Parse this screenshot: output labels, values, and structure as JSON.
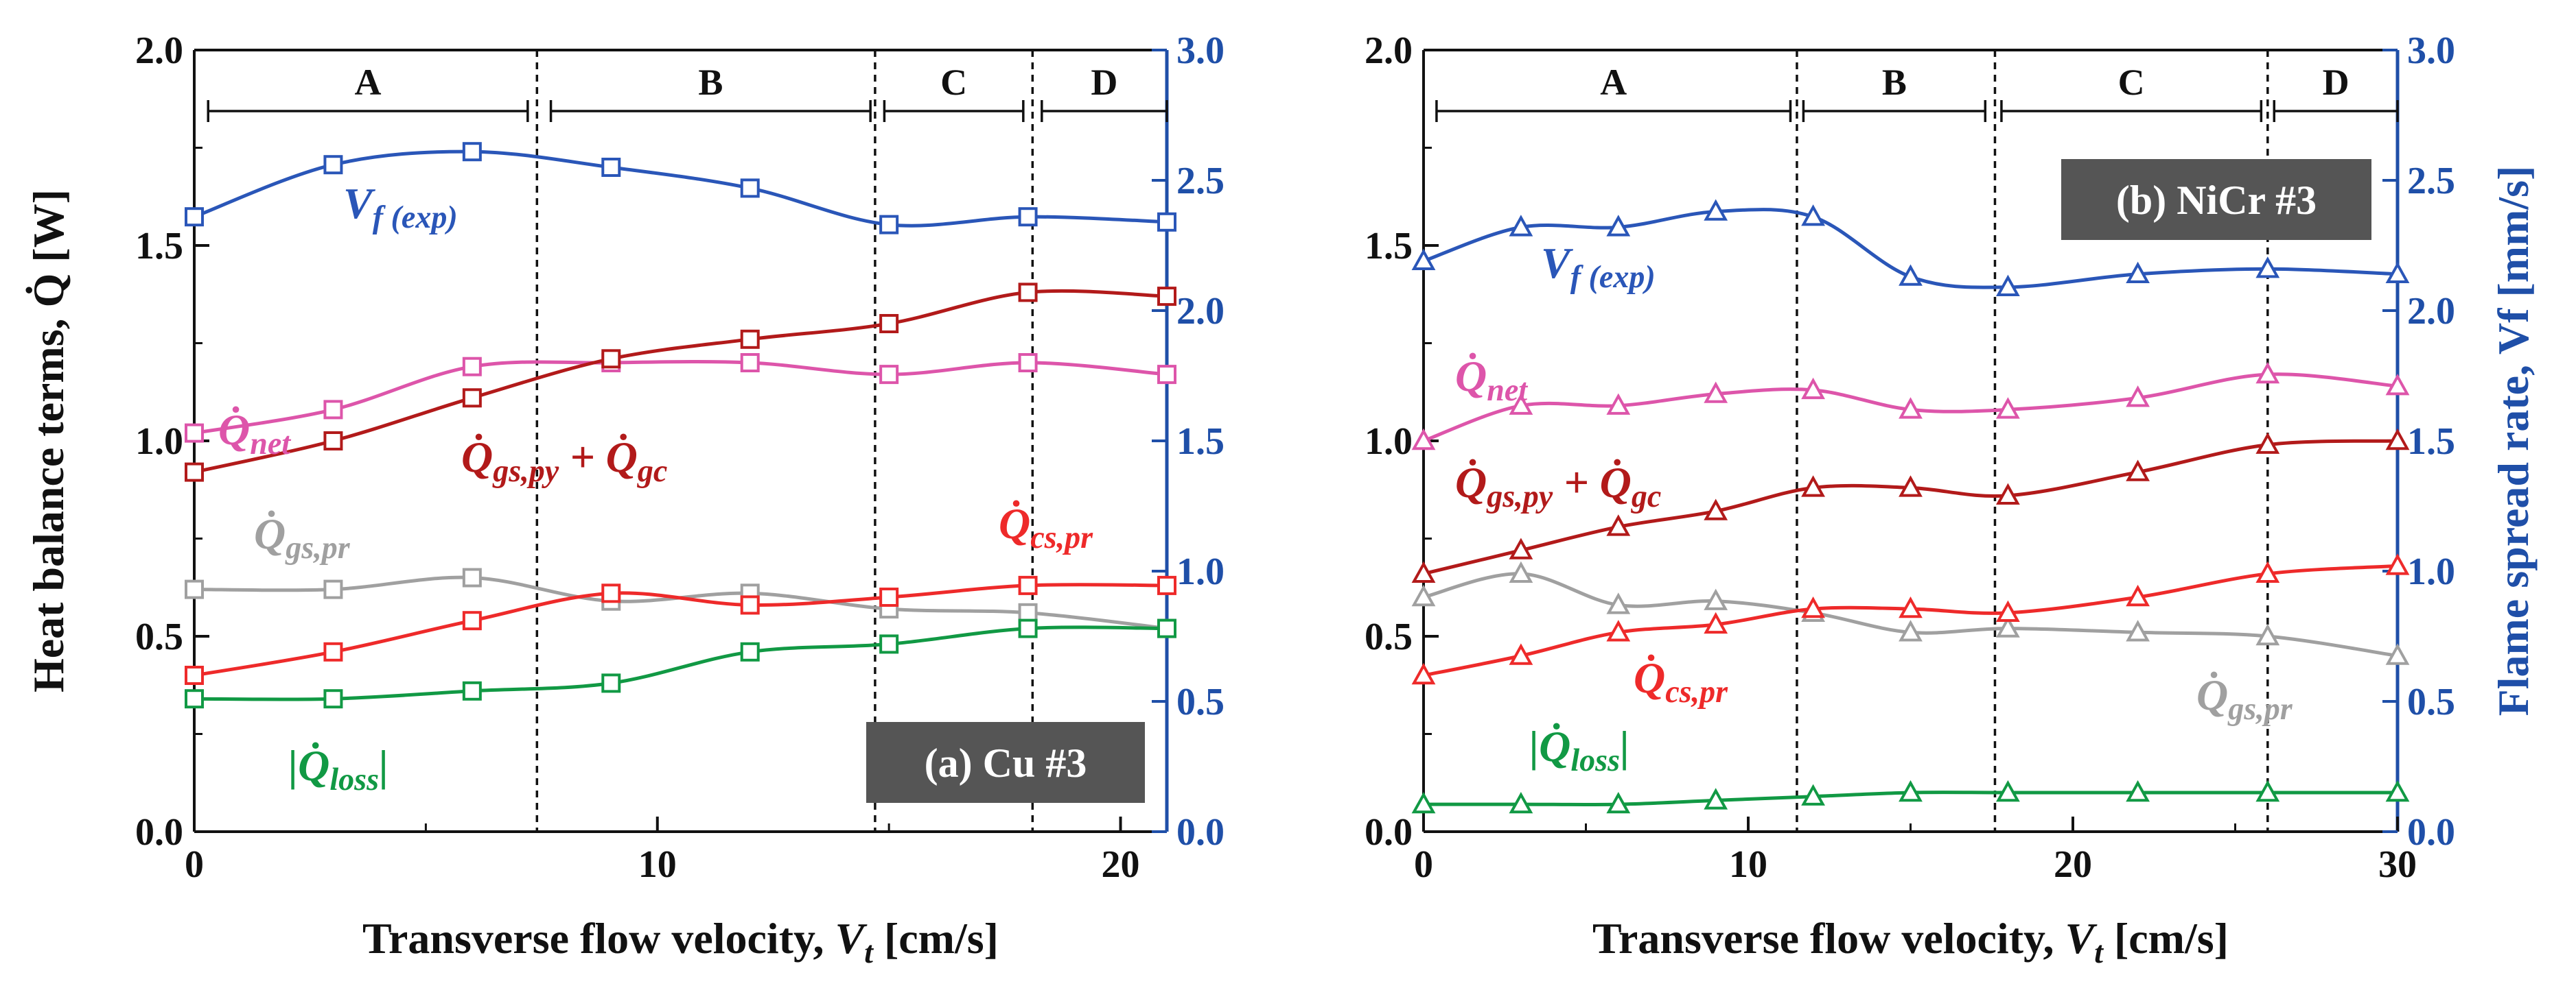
{
  "colors": {
    "heat_axis": "#111111",
    "spread_axis": "#1f4fa8",
    "vf": "#2a56b8",
    "qnet": "#dd55aa",
    "qgspygc": "#b21a1a",
    "qgspr": "#a0a0a0",
    "qcspr": "#ee2a2a",
    "qloss": "#119944",
    "badge_bg": "#555555",
    "badge_text": "#ffffff"
  },
  "shared": {
    "ylabel_left": "Heat balance terms, Q̇ [W]",
    "ylabel_right": "Flame spread rate, Vf [mm/s]",
    "xlabel": "Transverse flow velocity, Vt [cm/s]"
  },
  "chart_data": [
    {
      "type": "line",
      "title": "(a) Cu #3",
      "xlabel": "Transverse flow velocity, Vt [cm/s]",
      "ylabel": "Heat balance terms, Q̇ [W]",
      "ylabel_right": "Flame spread rate, Vf [mm/s]",
      "xlim": [
        0,
        21
      ],
      "ylim": [
        0,
        2.0
      ],
      "ylim_right": [
        0,
        3.0
      ],
      "xticks": [
        0,
        10,
        20
      ],
      "yticks": [
        0.0,
        0.5,
        1.0,
        1.5,
        2.0
      ],
      "yticks_right": [
        0.0,
        0.5,
        1.0,
        1.5,
        2.0,
        2.5,
        3.0
      ],
      "regions": [
        {
          "label": "A",
          "from": 0.3,
          "to": 7.2
        },
        {
          "label": "B",
          "from": 7.7,
          "to": 14.6
        },
        {
          "label": "C",
          "from": 14.9,
          "to": 17.9
        },
        {
          "label": "D",
          "from": 18.3,
          "to": 21
        }
      ],
      "dividers": [
        7.4,
        14.7,
        18.1
      ],
      "marker": "square",
      "series": [
        {
          "key": "vf",
          "name": "Vf (exp)",
          "label": "V",
          "sub": "f (exp)",
          "axis": "right",
          "x": [
            0,
            3,
            6,
            9,
            12,
            15,
            18,
            21
          ],
          "y": [
            2.36,
            2.56,
            2.61,
            2.55,
            2.47,
            2.33,
            2.36,
            2.34
          ]
        },
        {
          "key": "qnet",
          "name": "Q̇net",
          "label": "Q̇",
          "sub": "net",
          "axis": "left",
          "x": [
            0,
            3,
            6,
            9,
            12,
            15,
            18,
            21
          ],
          "y": [
            1.02,
            1.08,
            1.19,
            1.2,
            1.2,
            1.17,
            1.2,
            1.17
          ]
        },
        {
          "key": "qgspygc",
          "name": "Q̇gs,py + Q̇gc",
          "label": "Q̇",
          "sub": "gs,py",
          "label2": "+ Q̇",
          "sub2": "gc",
          "axis": "left",
          "x": [
            0,
            3,
            6,
            9,
            12,
            15,
            18,
            21
          ],
          "y": [
            0.92,
            1.0,
            1.11,
            1.21,
            1.26,
            1.3,
            1.38,
            1.37
          ]
        },
        {
          "key": "qgspr",
          "name": "Q̇gs,pr",
          "label": "Q̇",
          "sub": "gs,pr",
          "axis": "left",
          "x": [
            0,
            3,
            6,
            9,
            12,
            15,
            18,
            21
          ],
          "y": [
            0.62,
            0.62,
            0.65,
            0.59,
            0.61,
            0.57,
            0.56,
            0.52
          ]
        },
        {
          "key": "qcspr",
          "name": "Q̇cs,pr",
          "label": "Q̇",
          "sub": "cs,pr",
          "axis": "left",
          "x": [
            0,
            3,
            6,
            9,
            12,
            15,
            18,
            21
          ],
          "y": [
            0.4,
            0.46,
            0.54,
            0.61,
            0.58,
            0.6,
            0.63,
            0.63
          ]
        },
        {
          "key": "qloss",
          "name": "|Q̇loss|",
          "label": "|Q̇",
          "sub": "loss",
          "label3": "|",
          "axis": "left",
          "x": [
            0,
            3,
            6,
            9,
            12,
            15,
            18,
            21
          ],
          "y": [
            0.34,
            0.34,
            0.36,
            0.38,
            0.46,
            0.48,
            0.52,
            0.52
          ]
        }
      ]
    },
    {
      "type": "line",
      "title": "(b) NiCr #3",
      "xlabel": "Transverse flow velocity, Vt [cm/s]",
      "ylabel": "Heat balance terms, Q̇ [W]",
      "ylabel_right": "Flame spread rate, Vf [mm/s]",
      "xlim": [
        0,
        30
      ],
      "ylim": [
        0,
        2.0
      ],
      "ylim_right": [
        0,
        3.0
      ],
      "xticks": [
        0,
        10,
        20,
        30
      ],
      "yticks": [
        0.0,
        0.5,
        1.0,
        1.5,
        2.0
      ],
      "yticks_right": [
        0.0,
        0.5,
        1.0,
        1.5,
        2.0,
        2.5,
        3.0
      ],
      "regions": [
        {
          "label": "A",
          "from": 0.4,
          "to": 11.3
        },
        {
          "label": "B",
          "from": 11.7,
          "to": 17.3
        },
        {
          "label": "C",
          "from": 17.8,
          "to": 25.8
        },
        {
          "label": "D",
          "from": 26.2,
          "to": 30
        }
      ],
      "dividers": [
        11.5,
        17.6,
        26.0
      ],
      "marker": "triangle",
      "series": [
        {
          "key": "vf",
          "name": "Vf (exp)",
          "label": "V",
          "sub": "f (exp)",
          "axis": "right",
          "x": [
            0,
            3,
            6,
            9,
            12,
            15,
            18,
            22,
            26,
            30
          ],
          "y": [
            2.19,
            2.32,
            2.32,
            2.38,
            2.36,
            2.13,
            2.09,
            2.14,
            2.16,
            2.14
          ]
        },
        {
          "key": "qnet",
          "name": "Q̇net",
          "label": "Q̇",
          "sub": "net",
          "axis": "left",
          "x": [
            0,
            3,
            6,
            9,
            12,
            15,
            18,
            22,
            26,
            30
          ],
          "y": [
            1.0,
            1.09,
            1.09,
            1.12,
            1.13,
            1.08,
            1.08,
            1.11,
            1.17,
            1.14
          ]
        },
        {
          "key": "qgspygc",
          "name": "Q̇gs,py + Q̇gc",
          "label": "Q̇",
          "sub": "gs,py",
          "label2": "+ Q̇",
          "sub2": "gc",
          "axis": "left",
          "x": [
            0,
            3,
            6,
            9,
            12,
            15,
            18,
            22,
            26,
            30
          ],
          "y": [
            0.66,
            0.72,
            0.78,
            0.82,
            0.88,
            0.88,
            0.86,
            0.92,
            0.99,
            1.0
          ]
        },
        {
          "key": "qgspr",
          "name": "Q̇gs,pr",
          "label": "Q̇",
          "sub": "gs,pr",
          "axis": "left",
          "x": [
            0,
            3,
            6,
            9,
            12,
            15,
            18,
            22,
            26,
            30
          ],
          "y": [
            0.6,
            0.66,
            0.58,
            0.59,
            0.56,
            0.51,
            0.52,
            0.51,
            0.5,
            0.45
          ]
        },
        {
          "key": "qcspr",
          "name": "Q̇cs,pr",
          "label": "Q̇",
          "sub": "cs,pr",
          "axis": "left",
          "x": [
            0,
            3,
            6,
            9,
            12,
            15,
            18,
            22,
            26,
            30
          ],
          "y": [
            0.4,
            0.45,
            0.51,
            0.53,
            0.57,
            0.57,
            0.56,
            0.6,
            0.66,
            0.68
          ]
        },
        {
          "key": "qloss",
          "name": "|Q̇loss|",
          "label": "|Q̇",
          "sub": "loss",
          "label3": "|",
          "axis": "left",
          "x": [
            0,
            3,
            6,
            9,
            12,
            15,
            18,
            22,
            26,
            30
          ],
          "y": [
            0.07,
            0.07,
            0.07,
            0.08,
            0.09,
            0.1,
            0.1,
            0.1,
            0.1,
            0.1
          ]
        }
      ]
    }
  ]
}
